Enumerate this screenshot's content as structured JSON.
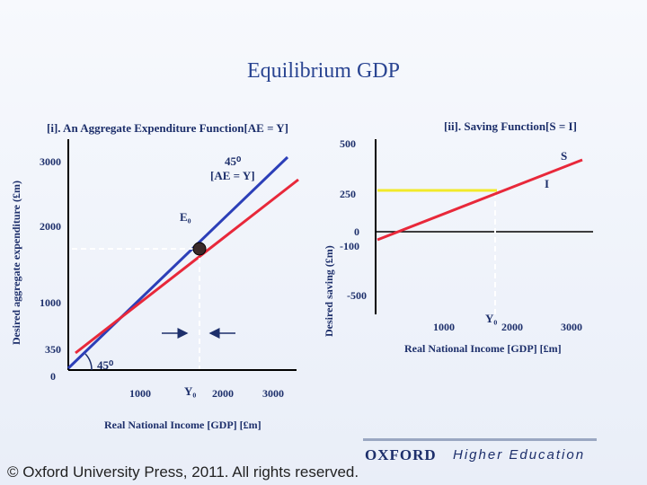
{
  "title": "Equilibrium GDP",
  "panel_left": {
    "title": "[i]. An Aggregate Expenditure Function[AE = Y]",
    "y_axis_label": "Desired aggregate expenditure (£m)",
    "x_axis_label": "Real National Income [GDP] [£m]",
    "y_ticks": [
      "3000",
      "2000",
      "1000",
      "350",
      "0"
    ],
    "x_ticks": [
      "1000",
      "2000",
      "3000"
    ],
    "y0_label": "Y₀",
    "e0_label": "E₀",
    "line45_label": "45⁰",
    "ae_label": "[AE = Y]",
    "angle_label": "45⁰"
  },
  "panel_right": {
    "title": "[ii]. Saving Function[S = I]",
    "y_axis_label": "Desired saving (£m)",
    "x_axis_label": "Real National Income [GDP] [£m]",
    "y_ticks": [
      "500",
      "250",
      "0",
      "-100",
      "-500"
    ],
    "x_ticks": [
      "1000",
      "2000",
      "3000"
    ],
    "y0_label": "Y₀",
    "s_label": "S",
    "i_label": "I"
  },
  "footer": {
    "publisher": "OXFORD",
    "publisher_sub": "Higher Education",
    "copyright": "© Oxford University Press, 2011. All rights reserved."
  },
  "colors": {
    "ae_line": "#e8283a",
    "line45": "#2c3fb8",
    "investment": "#f2ea2a",
    "saving": "#e8283a",
    "axes": "#000000",
    "text": "#1d2f6b"
  }
}
